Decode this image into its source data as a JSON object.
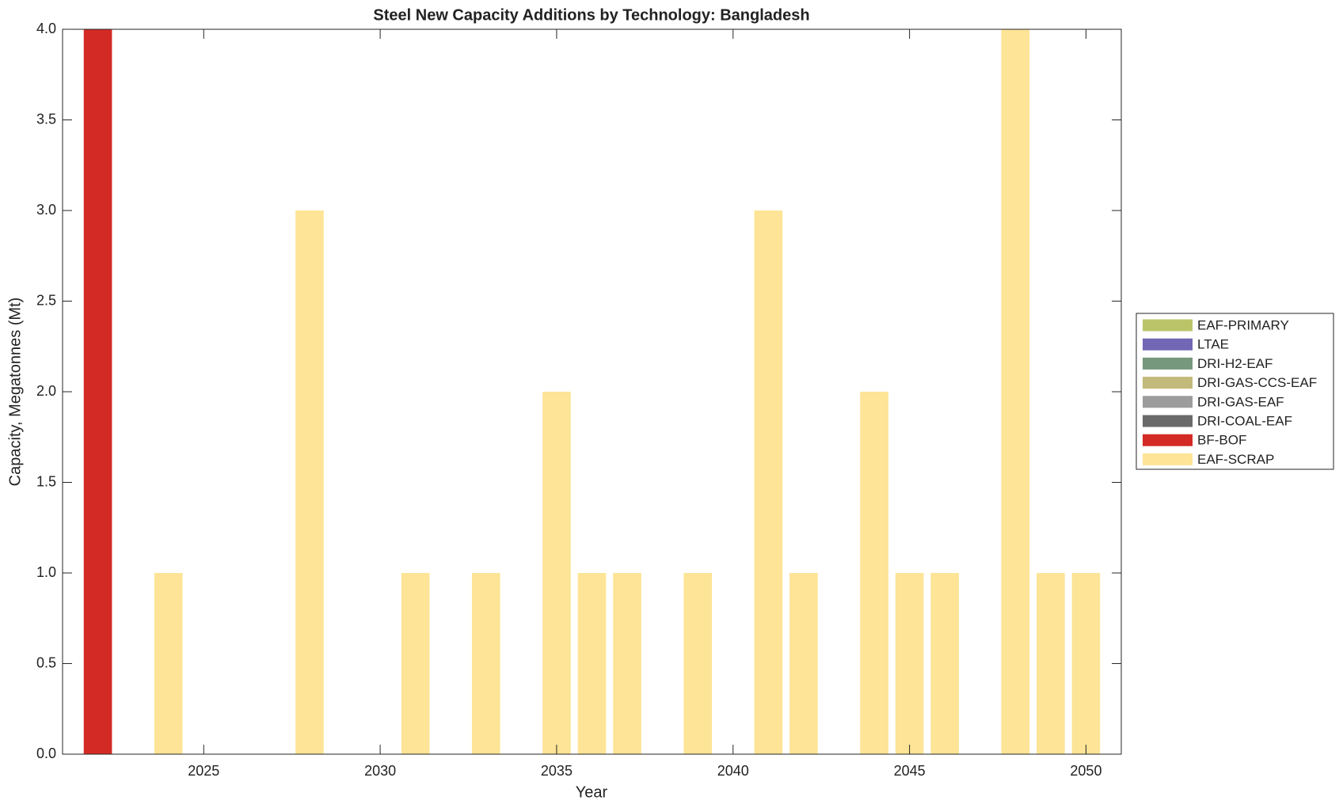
{
  "chart_data": {
    "type": "bar",
    "stacked": true,
    "title": "Steel New Capacity Additions by Technology: Bangladesh",
    "xlabel": "Year",
    "ylabel": "Capacity, Megatonnes (Mt)",
    "x": [
      2022,
      2023,
      2024,
      2025,
      2026,
      2027,
      2028,
      2029,
      2030,
      2031,
      2032,
      2033,
      2034,
      2035,
      2036,
      2037,
      2038,
      2039,
      2040,
      2041,
      2042,
      2043,
      2044,
      2045,
      2046,
      2047,
      2048,
      2049,
      2050
    ],
    "series": [
      {
        "name": "EAF-PRIMARY",
        "color": "#bcc46a",
        "values": [
          0,
          0,
          0,
          0,
          0,
          0,
          0,
          0,
          0,
          0,
          0,
          0,
          0,
          0,
          0,
          0,
          0,
          0,
          0,
          0,
          0,
          0,
          0,
          0,
          0,
          0,
          0,
          0,
          0
        ]
      },
      {
        "name": "LTAE",
        "color": "#7167b5",
        "values": [
          0,
          0,
          0,
          0,
          0,
          0,
          0,
          0,
          0,
          0,
          0,
          0,
          0,
          0,
          0,
          0,
          0,
          0,
          0,
          0,
          0,
          0,
          0,
          0,
          0,
          0,
          0,
          0,
          0
        ]
      },
      {
        "name": "DRI-H2-EAF",
        "color": "#76987c",
        "values": [
          0,
          0,
          0,
          0,
          0,
          0,
          0,
          0,
          0,
          0,
          0,
          0,
          0,
          0,
          0,
          0,
          0,
          0,
          0,
          0,
          0,
          0,
          0,
          0,
          0,
          0,
          0,
          0,
          0
        ]
      },
      {
        "name": "DRI-GAS-CCS-EAF",
        "color": "#c2b97a",
        "values": [
          0,
          0,
          0,
          0,
          0,
          0,
          0,
          0,
          0,
          0,
          0,
          0,
          0,
          0,
          0,
          0,
          0,
          0,
          0,
          0,
          0,
          0,
          0,
          0,
          0,
          0,
          0,
          0,
          0
        ]
      },
      {
        "name": "DRI-GAS-EAF",
        "color": "#9c9c9c",
        "values": [
          0,
          0,
          0,
          0,
          0,
          0,
          0,
          0,
          0,
          0,
          0,
          0,
          0,
          0,
          0,
          0,
          0,
          0,
          0,
          0,
          0,
          0,
          0,
          0,
          0,
          0,
          0,
          0,
          0
        ]
      },
      {
        "name": "DRI-COAL-EAF",
        "color": "#6a6a6a",
        "values": [
          0,
          0,
          0,
          0,
          0,
          0,
          0,
          0,
          0,
          0,
          0,
          0,
          0,
          0,
          0,
          0,
          0,
          0,
          0,
          0,
          0,
          0,
          0,
          0,
          0,
          0,
          0,
          0,
          0
        ]
      },
      {
        "name": "BF-BOF",
        "color": "#d42a25",
        "values": [
          4,
          0,
          0,
          0,
          0,
          0,
          0,
          0,
          0,
          0,
          0,
          0,
          0,
          0,
          0,
          0,
          0,
          0,
          0,
          0,
          0,
          0,
          0,
          0,
          0,
          0,
          0,
          0,
          0
        ]
      },
      {
        "name": "EAF-SCRAP",
        "color": "#fde496",
        "values": [
          0,
          0,
          1,
          0,
          0,
          0,
          3,
          0,
          0,
          1,
          0,
          1,
          0,
          2,
          1,
          1,
          0,
          1,
          0,
          3,
          1,
          0,
          2,
          1,
          1,
          0,
          4,
          1,
          1
        ]
      }
    ],
    "xlim": [
      2021,
      2051
    ],
    "xticks": [
      2025,
      2030,
      2035,
      2040,
      2045,
      2050
    ],
    "ylim": [
      0,
      4
    ],
    "yticks": [
      {
        "value": 0,
        "label": "0.0"
      },
      {
        "value": 0.5,
        "label": "0.5"
      },
      {
        "value": 1,
        "label": "1.0"
      },
      {
        "value": 1.5,
        "label": "1.5"
      },
      {
        "value": 2,
        "label": "2.0"
      },
      {
        "value": 2.5,
        "label": "2.5"
      },
      {
        "value": 3,
        "label": "3.0"
      },
      {
        "value": 3.5,
        "label": "3.5"
      },
      {
        "value": 4,
        "label": "4.0"
      }
    ],
    "legend": "right"
  }
}
